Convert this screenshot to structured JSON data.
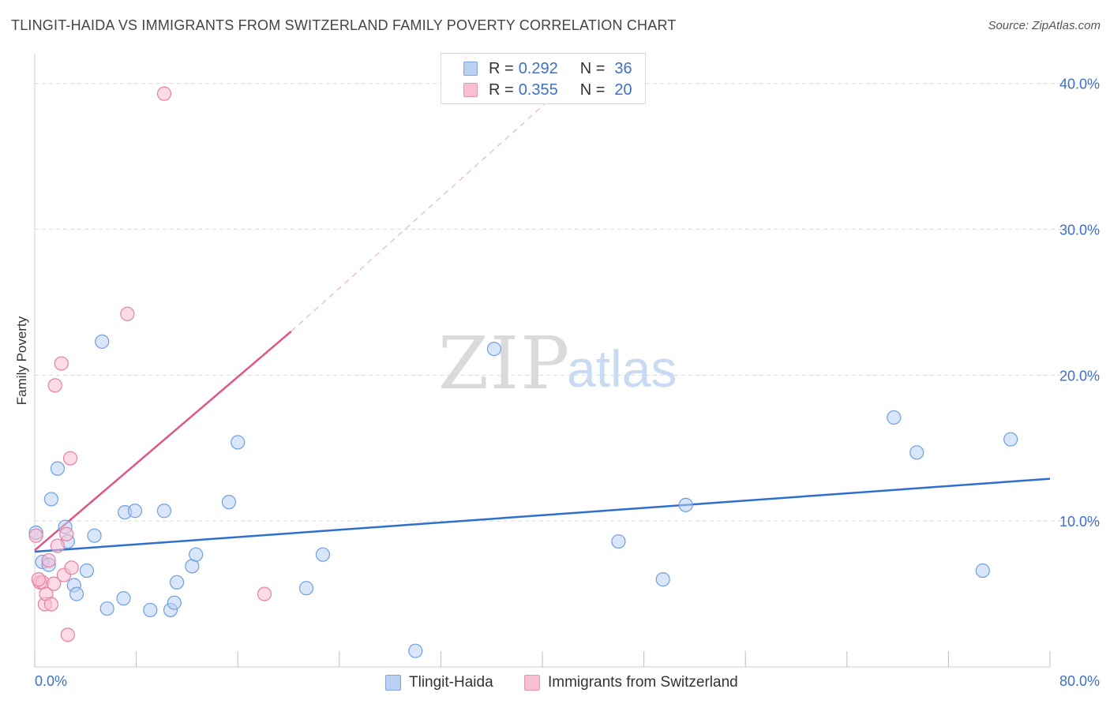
{
  "chart_data": {
    "type": "scatter",
    "title": "TLINGIT-HAIDA VS IMMIGRANTS FROM SWITZERLAND FAMILY POVERTY CORRELATION CHART",
    "source": "Source: ZipAtlas.com",
    "xlabel": "",
    "ylabel": "Family Poverty",
    "xlim": [
      0,
      80
    ],
    "ylim": [
      0,
      41.5
    ],
    "x_tick_labels": [
      "0.0%",
      "80.0%"
    ],
    "y_ticks": [
      10,
      20,
      30,
      40
    ],
    "y_tick_labels": [
      "10.0%",
      "20.0%",
      "30.0%",
      "40.0%"
    ],
    "watermark": {
      "zip": "ZIP",
      "atlas": "atlas"
    },
    "series": [
      {
        "name": "Tlingit-Haida",
        "color": "#6f9fe0",
        "fill": "#b9d0f3",
        "R": "0.292",
        "N": "36",
        "points": [
          [
            0.1,
            9.2
          ],
          [
            0.6,
            7.2
          ],
          [
            1.1,
            7.0
          ],
          [
            1.3,
            11.5
          ],
          [
            1.8,
            13.6
          ],
          [
            2.4,
            9.6
          ],
          [
            2.6,
            8.6
          ],
          [
            3.1,
            5.6
          ],
          [
            3.3,
            5.0
          ],
          [
            4.1,
            6.6
          ],
          [
            4.7,
            9.0
          ],
          [
            5.3,
            22.3
          ],
          [
            5.7,
            4.0
          ],
          [
            7.0,
            4.7
          ],
          [
            7.1,
            10.6
          ],
          [
            7.9,
            10.7
          ],
          [
            9.1,
            3.9
          ],
          [
            10.2,
            10.7
          ],
          [
            10.7,
            3.9
          ],
          [
            11.0,
            4.4
          ],
          [
            11.2,
            5.8
          ],
          [
            12.4,
            6.9
          ],
          [
            12.7,
            7.7
          ],
          [
            15.3,
            11.3
          ],
          [
            16.0,
            15.4
          ],
          [
            21.4,
            5.4
          ],
          [
            22.7,
            7.7
          ],
          [
            30.0,
            1.1
          ],
          [
            36.2,
            21.8
          ],
          [
            46.0,
            8.6
          ],
          [
            49.5,
            6.0
          ],
          [
            51.3,
            11.1
          ],
          [
            67.7,
            17.1
          ],
          [
            69.5,
            14.7
          ],
          [
            74.7,
            6.6
          ],
          [
            76.9,
            15.6
          ]
        ],
        "trend": {
          "x": [
            0,
            80
          ],
          "y": [
            7.9,
            12.9
          ]
        }
      },
      {
        "name": "Immigrants from Switzerland",
        "color": "#e77fa2",
        "fill": "#f7bfd1",
        "R": "0.355",
        "N": "20",
        "points": [
          [
            0.1,
            9.0
          ],
          [
            0.4,
            5.8
          ],
          [
            0.6,
            5.8
          ],
          [
            0.8,
            4.3
          ],
          [
            0.9,
            5.0
          ],
          [
            1.1,
            7.3
          ],
          [
            1.3,
            4.3
          ],
          [
            1.5,
            5.7
          ],
          [
            1.6,
            19.3
          ],
          [
            1.8,
            8.3
          ],
          [
            2.1,
            20.8
          ],
          [
            2.3,
            6.3
          ],
          [
            2.5,
            9.1
          ],
          [
            2.6,
            2.2
          ],
          [
            2.8,
            14.3
          ],
          [
            2.9,
            6.8
          ],
          [
            7.3,
            24.2
          ],
          [
            10.2,
            39.3
          ],
          [
            18.1,
            5.0
          ],
          [
            0.3,
            6.0
          ]
        ],
        "trend": {
          "x": [
            0,
            20.2
          ],
          "y": [
            8.0,
            23.0
          ]
        },
        "trend_extended": {
          "x": [
            20.2,
            42.5
          ],
          "y": [
            23.0,
            40.4
          ]
        }
      }
    ]
  },
  "legend": {
    "r_label": "R =",
    "n_label": "N ="
  }
}
